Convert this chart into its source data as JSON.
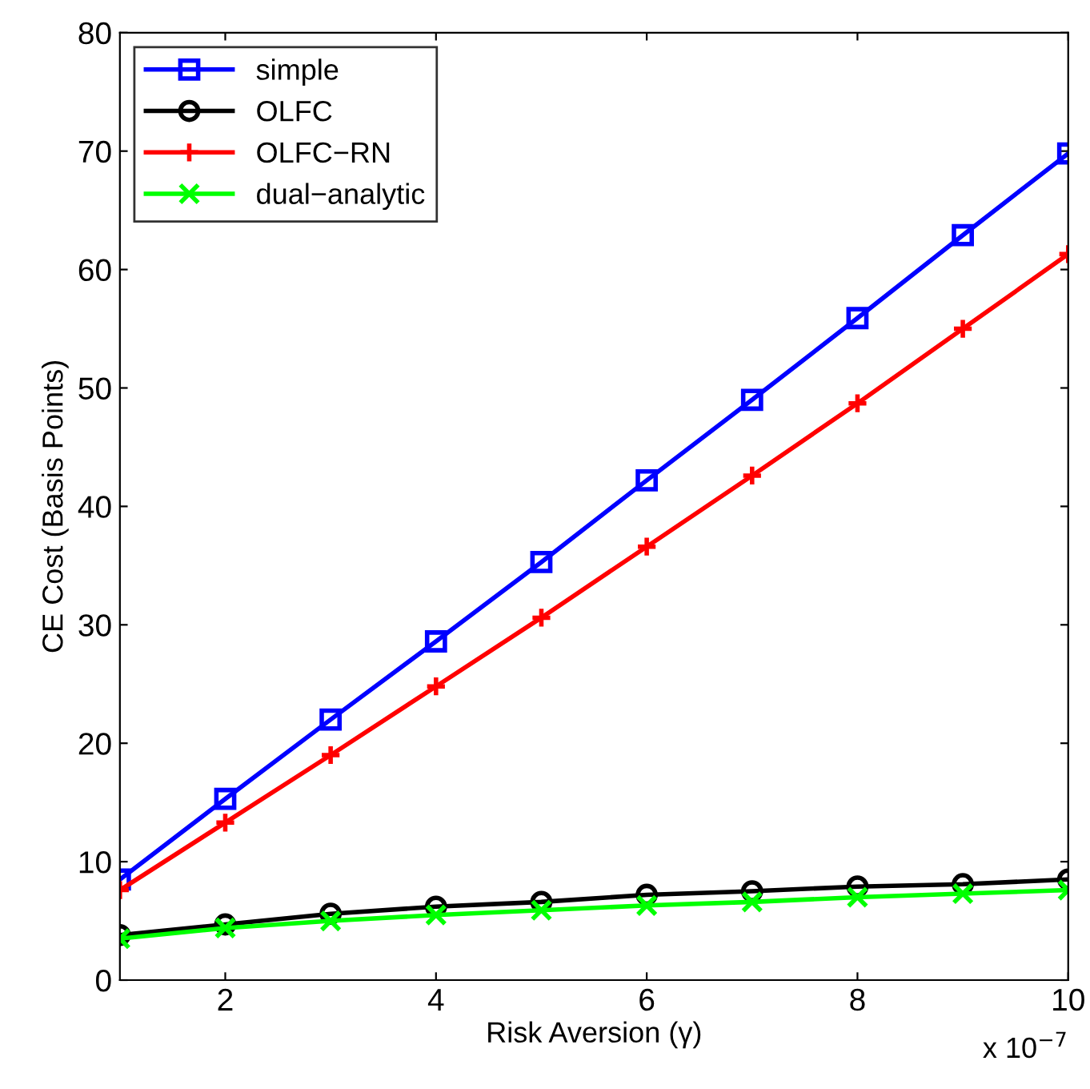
{
  "chart_data": {
    "type": "line",
    "xlabel": "Risk Aversion (γ)",
    "ylabel": "CE Cost (Basis Points)",
    "x": [
      1,
      2,
      3,
      4,
      5,
      6,
      7,
      8,
      9,
      10
    ],
    "series": [
      {
        "name": "simple",
        "color": "#0000ff",
        "marker": "square",
        "values": [
          8.5,
          15.3,
          22.0,
          28.6,
          35.3,
          42.2,
          49.0,
          55.9,
          62.9,
          69.8
        ]
      },
      {
        "name": "OLFC",
        "color": "#000000",
        "marker": "circle",
        "values": [
          3.8,
          4.7,
          5.6,
          6.2,
          6.6,
          7.2,
          7.5,
          7.9,
          8.1,
          8.5
        ]
      },
      {
        "name": "OLFC−RN",
        "color": "#ff0000",
        "marker": "plus",
        "values": [
          7.6,
          13.3,
          19.0,
          24.8,
          30.6,
          36.6,
          42.6,
          48.7,
          55.0,
          61.3
        ]
      },
      {
        "name": "dual−analytic",
        "color": "#00ff00",
        "marker": "cross",
        "values": [
          3.5,
          4.4,
          5.0,
          5.5,
          5.9,
          6.3,
          6.6,
          7.0,
          7.3,
          7.6
        ]
      }
    ],
    "xlim": [
      1,
      10
    ],
    "xticks": [
      2,
      4,
      6,
      8,
      10
    ],
    "ylim": [
      0,
      80
    ],
    "yticks": [
      0,
      10,
      20,
      30,
      40,
      50,
      60,
      70,
      80
    ],
    "annotations": [
      "x 10$^{−7}$"
    ],
    "legend": "top left",
    "grid": false,
    "line_style": "solid"
  }
}
